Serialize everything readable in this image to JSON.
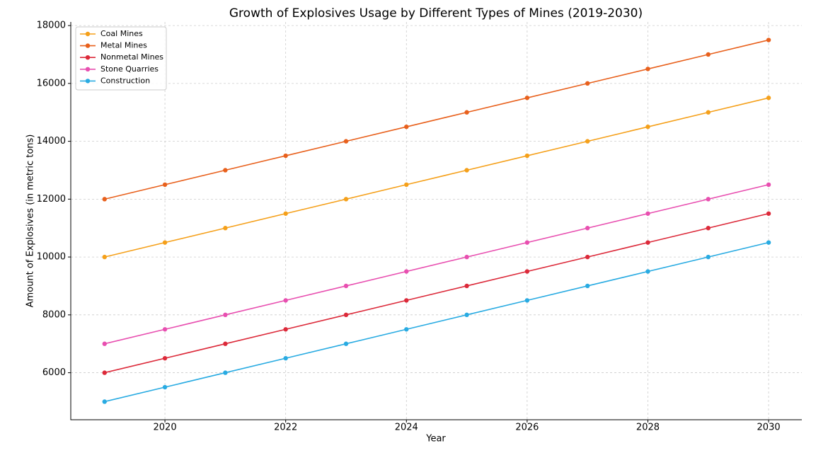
{
  "chart_data": {
    "type": "line",
    "title": "Growth of Explosives Usage by Different Types of Mines (2019-2030)",
    "x_label": "Year",
    "y_label": "Amount of Explosives (in metric tons)",
    "x": [
      2019,
      2020,
      2021,
      2022,
      2023,
      2024,
      2025,
      2026,
      2027,
      2028,
      2029,
      2030
    ],
    "series": [
      {
        "name": "Coal Mines",
        "color": "#f5a01a",
        "values": [
          10000,
          10500,
          11000,
          11500,
          12000,
          12500,
          13000,
          13500,
          14000,
          14500,
          15000,
          15500
        ]
      },
      {
        "name": "Metal Mines",
        "color": "#e8601c",
        "values": [
          12000,
          12500,
          13000,
          13500,
          14000,
          14500,
          15000,
          15500,
          16000,
          16500,
          17000,
          17500
        ]
      },
      {
        "name": "Nonmetal Mines",
        "color": "#dc2a3a",
        "values": [
          6000,
          6500,
          7000,
          7500,
          8000,
          8500,
          9000,
          9500,
          10000,
          10500,
          11000,
          11500
        ]
      },
      {
        "name": "Stone Quarries",
        "color": "#e84fb0",
        "values": [
          7000,
          7500,
          8000,
          8500,
          9000,
          9500,
          10000,
          10500,
          11000,
          11500,
          12000,
          12500
        ]
      },
      {
        "name": "Construction",
        "color": "#29abe2",
        "values": [
          5000,
          5500,
          6000,
          6500,
          7000,
          7500,
          8000,
          8500,
          9000,
          9500,
          10000,
          10500
        ]
      }
    ],
    "xlim": [
      2018.44,
      2030.55
    ],
    "ylim": [
      4375,
      18125
    ],
    "xticks": [
      2020,
      2022,
      2024,
      2026,
      2028,
      2030
    ],
    "yticks": [
      6000,
      8000,
      10000,
      12000,
      14000,
      16000,
      18000
    ],
    "grid": true,
    "legend": "upper-left"
  }
}
